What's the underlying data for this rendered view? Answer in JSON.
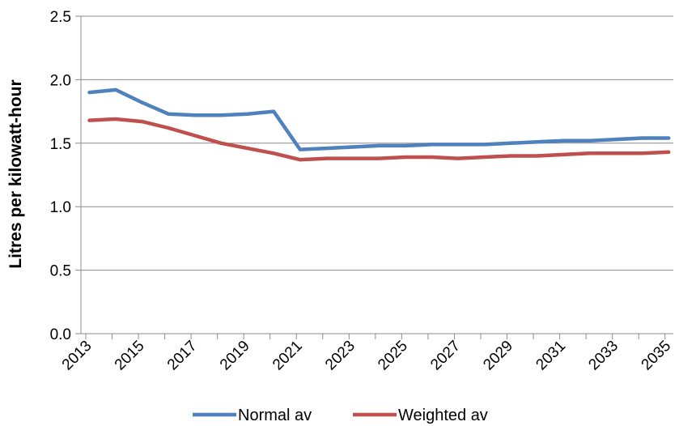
{
  "chart_data": {
    "type": "line",
    "title": "",
    "xlabel": "",
    "ylabel": "Litres per kilowatt-hour",
    "ylim": [
      0,
      2.5
    ],
    "yticks": [
      "0.0",
      "0.5",
      "1.0",
      "1.5",
      "2.0",
      "2.5"
    ],
    "xlim": [
      2013,
      2035
    ],
    "xticks": [
      "2013",
      "2015",
      "2017",
      "2019",
      "2021",
      "2023",
      "2025",
      "2027",
      "2029",
      "2031",
      "2033",
      "2035"
    ],
    "grid": "horizontal",
    "legend": "bottom",
    "x": [
      2013.2,
      2014.2,
      2015.2,
      2016.2,
      2017.2,
      2018.2,
      2019.2,
      2020.2,
      2021.2,
      2022.2,
      2023.2,
      2024.2,
      2025.2,
      2026.2,
      2027.2,
      2028.2,
      2029.2,
      2030.2,
      2031.2,
      2032.2,
      2033.2,
      2034.2,
      2035.2
    ],
    "series": [
      {
        "name": "Normal av",
        "color": "#4f81bd",
        "values": [
          1.9,
          1.92,
          1.82,
          1.73,
          1.72,
          1.72,
          1.73,
          1.75,
          1.45,
          1.46,
          1.47,
          1.48,
          1.48,
          1.49,
          1.49,
          1.49,
          1.5,
          1.51,
          1.52,
          1.52,
          1.53,
          1.54,
          1.54
        ]
      },
      {
        "name": "Weighted av",
        "color": "#c0504d",
        "values": [
          1.68,
          1.69,
          1.67,
          1.62,
          1.56,
          1.5,
          1.46,
          1.42,
          1.37,
          1.38,
          1.38,
          1.38,
          1.39,
          1.39,
          1.38,
          1.39,
          1.4,
          1.4,
          1.41,
          1.42,
          1.42,
          1.42,
          1.43
        ]
      }
    ]
  }
}
